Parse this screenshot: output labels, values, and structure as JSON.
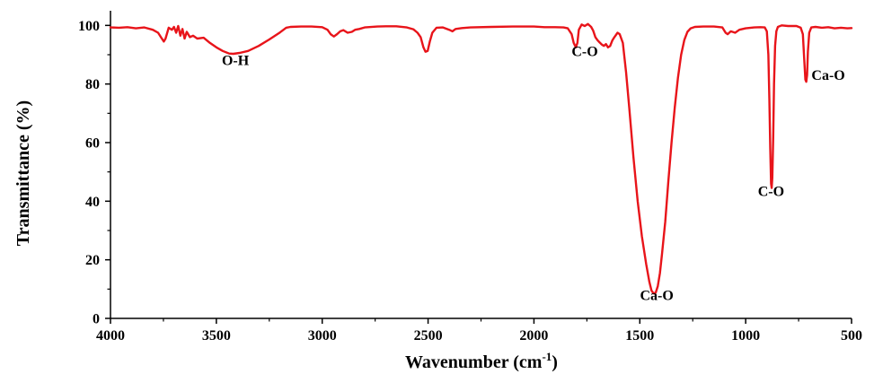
{
  "chart_data": {
    "type": "line",
    "title": "",
    "xlabel_main": "Wavenumber (cm",
    "xlabel_sup": "-1",
    "xlabel_close": ")",
    "ylabel": "Transmittance (%)",
    "xlim": [
      4000,
      500
    ],
    "ylim": [
      0,
      105
    ],
    "x_reversed": true,
    "grid": false,
    "legend": "none",
    "line_color": "#e8141a",
    "x_ticks": [
      {
        "value": 4000,
        "label": "4000"
      },
      {
        "value": 3500,
        "label": "3500"
      },
      {
        "value": 3000,
        "label": "3000"
      },
      {
        "value": 2500,
        "label": "2500"
      },
      {
        "value": 2000,
        "label": "2000"
      },
      {
        "value": 1500,
        "label": "1500"
      },
      {
        "value": 1000,
        "label": "1000"
      },
      {
        "value": 500,
        "label": "500"
      }
    ],
    "y_ticks": [
      {
        "value": 0,
        "label": "0"
      },
      {
        "value": 20,
        "label": "20"
      },
      {
        "value": 40,
        "label": "40"
      },
      {
        "value": 60,
        "label": "60"
      },
      {
        "value": 80,
        "label": "80"
      },
      {
        "value": 100,
        "label": "100"
      }
    ],
    "annotations": [
      {
        "text": "O-H",
        "x": 3410,
        "y": 86.5
      },
      {
        "text": "C-O",
        "x": 1760,
        "y": 89.5
      },
      {
        "text": "Ca-O",
        "x": 1420,
        "y": 6.3
      },
      {
        "text": "C-O",
        "x": 880,
        "y": 41.8
      },
      {
        "text": "Ca-O",
        "x": 610,
        "y": 81.5
      }
    ],
    "series": [
      {
        "points": [
          [
            4000,
            99.3
          ],
          [
            3960,
            99.2
          ],
          [
            3920,
            99.4
          ],
          [
            3880,
            99.0
          ],
          [
            3840,
            99.3
          ],
          [
            3800,
            98.5
          ],
          [
            3775,
            97.5
          ],
          [
            3760,
            95.8
          ],
          [
            3748,
            94.5
          ],
          [
            3740,
            95.5
          ],
          [
            3725,
            99.2
          ],
          [
            3710,
            98.5
          ],
          [
            3700,
            99.5
          ],
          [
            3690,
            97.5
          ],
          [
            3680,
            99.8
          ],
          [
            3670,
            96.5
          ],
          [
            3660,
            98.8
          ],
          [
            3650,
            95.5
          ],
          [
            3640,
            97.8
          ],
          [
            3625,
            96.0
          ],
          [
            3610,
            96.5
          ],
          [
            3590,
            95.5
          ],
          [
            3560,
            95.8
          ],
          [
            3530,
            94.0
          ],
          [
            3500,
            92.5
          ],
          [
            3470,
            91.3
          ],
          [
            3440,
            90.4
          ],
          [
            3420,
            90.3
          ],
          [
            3390,
            90.6
          ],
          [
            3350,
            91.3
          ],
          [
            3300,
            93.0
          ],
          [
            3250,
            95.2
          ],
          [
            3200,
            97.6
          ],
          [
            3170,
            99.2
          ],
          [
            3150,
            99.5
          ],
          [
            3100,
            99.6
          ],
          [
            3050,
            99.6
          ],
          [
            3000,
            99.4
          ],
          [
            2975,
            98.5
          ],
          [
            2960,
            97.0
          ],
          [
            2945,
            96.2
          ],
          [
            2930,
            97.0
          ],
          [
            2915,
            98.0
          ],
          [
            2900,
            98.4
          ],
          [
            2880,
            97.5
          ],
          [
            2860,
            97.8
          ],
          [
            2845,
            98.5
          ],
          [
            2825,
            98.8
          ],
          [
            2800,
            99.3
          ],
          [
            2740,
            99.6
          ],
          [
            2700,
            99.7
          ],
          [
            2650,
            99.7
          ],
          [
            2600,
            99.3
          ],
          [
            2570,
            98.7
          ],
          [
            2550,
            97.5
          ],
          [
            2535,
            96.0
          ],
          [
            2522,
            92.5
          ],
          [
            2512,
            91.0
          ],
          [
            2502,
            91.3
          ],
          [
            2492,
            94.5
          ],
          [
            2480,
            97.5
          ],
          [
            2460,
            99.2
          ],
          [
            2430,
            99.3
          ],
          [
            2400,
            98.5
          ],
          [
            2385,
            98.0
          ],
          [
            2370,
            98.8
          ],
          [
            2340,
            99.1
          ],
          [
            2300,
            99.3
          ],
          [
            2200,
            99.5
          ],
          [
            2100,
            99.6
          ],
          [
            2000,
            99.6
          ],
          [
            1950,
            99.4
          ],
          [
            1900,
            99.4
          ],
          [
            1860,
            99.3
          ],
          [
            1840,
            99.0
          ],
          [
            1822,
            97.0
          ],
          [
            1812,
            94.0
          ],
          [
            1802,
            92.5
          ],
          [
            1795,
            94.0
          ],
          [
            1788,
            98.5
          ],
          [
            1775,
            100.3
          ],
          [
            1760,
            99.8
          ],
          [
            1745,
            100.5
          ],
          [
            1730,
            99.5
          ],
          [
            1720,
            98.2
          ],
          [
            1710,
            96.0
          ],
          [
            1700,
            95.0
          ],
          [
            1690,
            94.2
          ],
          [
            1680,
            93.5
          ],
          [
            1670,
            93.0
          ],
          [
            1660,
            93.6
          ],
          [
            1650,
            92.5
          ],
          [
            1640,
            93.0
          ],
          [
            1630,
            94.8
          ],
          [
            1620,
            96.0
          ],
          [
            1605,
            97.5
          ],
          [
            1595,
            97.0
          ],
          [
            1580,
            94.0
          ],
          [
            1565,
            84.0
          ],
          [
            1550,
            72.0
          ],
          [
            1530,
            55.0
          ],
          [
            1510,
            40.0
          ],
          [
            1490,
            28.0
          ],
          [
            1470,
            18.5
          ],
          [
            1455,
            12.5
          ],
          [
            1445,
            9.5
          ],
          [
            1435,
            8.5
          ],
          [
            1425,
            8.8
          ],
          [
            1415,
            11.0
          ],
          [
            1405,
            15.5
          ],
          [
            1395,
            22.0
          ],
          [
            1380,
            33.0
          ],
          [
            1365,
            47.0
          ],
          [
            1350,
            60.0
          ],
          [
            1335,
            72.0
          ],
          [
            1320,
            82.0
          ],
          [
            1305,
            90.0
          ],
          [
            1290,
            95.0
          ],
          [
            1275,
            97.8
          ],
          [
            1260,
            99.0
          ],
          [
            1240,
            99.5
          ],
          [
            1200,
            99.6
          ],
          [
            1150,
            99.6
          ],
          [
            1110,
            99.3
          ],
          [
            1095,
            97.5
          ],
          [
            1085,
            97.0
          ],
          [
            1070,
            98.0
          ],
          [
            1050,
            97.5
          ],
          [
            1030,
            98.5
          ],
          [
            1000,
            99.0
          ],
          [
            960,
            99.3
          ],
          [
            930,
            99.4
          ],
          [
            910,
            99.3
          ],
          [
            900,
            98.0
          ],
          [
            893,
            90.0
          ],
          [
            888,
            75.0
          ],
          [
            884,
            58.0
          ],
          [
            880,
            46.0
          ],
          [
            877,
            44.5
          ],
          [
            874,
            48.0
          ],
          [
            870,
            62.0
          ],
          [
            866,
            80.0
          ],
          [
            861,
            93.0
          ],
          [
            855,
            98.0
          ],
          [
            848,
            99.5
          ],
          [
            830,
            100.0
          ],
          [
            800,
            99.8
          ],
          [
            760,
            99.8
          ],
          [
            740,
            99.2
          ],
          [
            730,
            97.0
          ],
          [
            723,
            88.0
          ],
          [
            718,
            81.5
          ],
          [
            714,
            80.8
          ],
          [
            710,
            83.0
          ],
          [
            706,
            91.0
          ],
          [
            700,
            97.5
          ],
          [
            690,
            99.3
          ],
          [
            670,
            99.5
          ],
          [
            640,
            99.2
          ],
          [
            610,
            99.4
          ],
          [
            580,
            99.0
          ],
          [
            550,
            99.2
          ],
          [
            520,
            99.0
          ],
          [
            500,
            99.1
          ]
        ]
      }
    ]
  }
}
